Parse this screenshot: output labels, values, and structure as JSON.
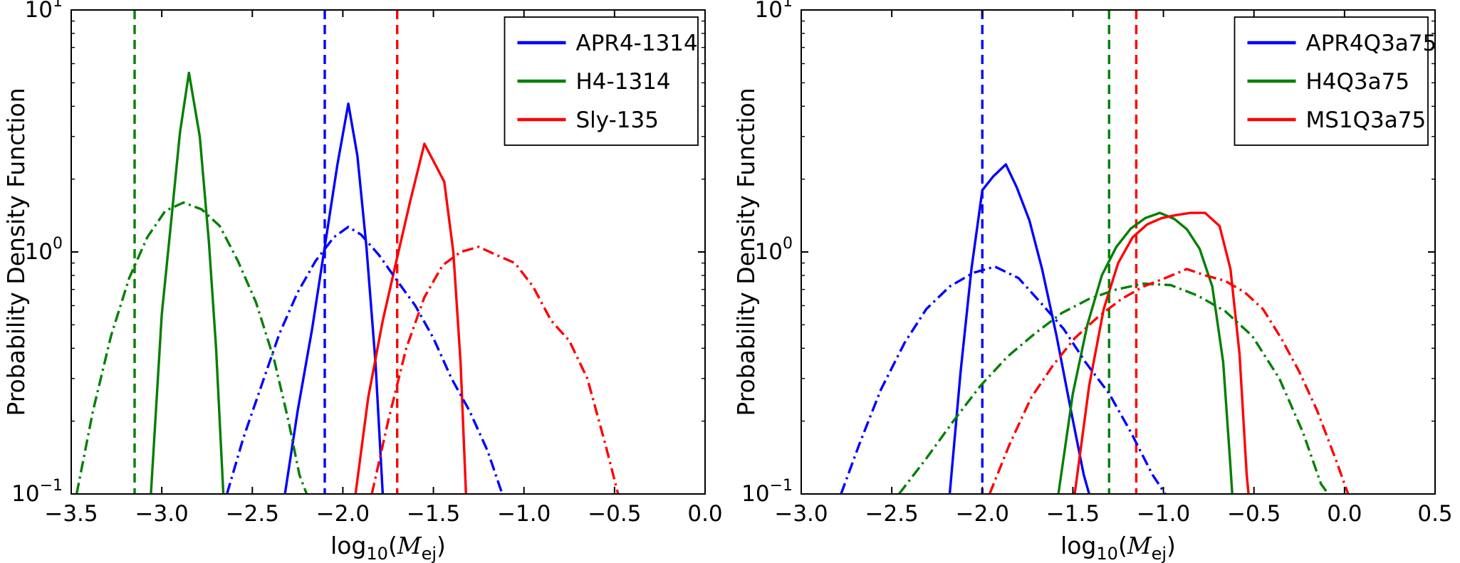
{
  "figure": {
    "background": "#ffffff",
    "description": "Two probability density function plots of ejecta mass (log10 Mej), left panel NS-NS models, right panel NS-BH models"
  },
  "colors": {
    "blue": "#0000ff",
    "green": "#008000",
    "red": "#ff0000",
    "axis": "#000000"
  },
  "chart_data": [
    {
      "type": "line",
      "title": "",
      "xlabel": "log10(M_ej)",
      "xlabel_math": {
        "func": "log",
        "sub": "10",
        "open": "(",
        "var": "M",
        "varsub": "ej",
        "close": ")"
      },
      "ylabel": "Probability Density Function",
      "xlim": [
        -3.5,
        0.0
      ],
      "xticks": [
        -3.5,
        -3.0,
        -2.5,
        -2.0,
        -1.5,
        -1.0,
        -0.5,
        0.0
      ],
      "yscale": "log",
      "ylim": [
        0.1,
        10
      ],
      "ytick_exponents": [
        -1,
        0,
        1
      ],
      "grid": false,
      "legend": {
        "position": "upper right",
        "entries": [
          {
            "label": "APR4-1314",
            "color": "#0000ff"
          },
          {
            "label": "H4-1314",
            "color": "#008000"
          },
          {
            "label": "Sly-135",
            "color": "#ff0000"
          }
        ]
      },
      "vlines": [
        {
          "x": -3.15,
          "color": "#008000",
          "style": "dashed"
        },
        {
          "x": -2.1,
          "color": "#0000ff",
          "style": "dashed"
        },
        {
          "x": -1.7,
          "color": "#ff0000",
          "style": "dashed"
        }
      ],
      "series": [
        {
          "name": "H4-1314-solid",
          "color": "#008000",
          "linestyle": "solid",
          "points": [
            [
              -3.06,
              0.1
            ],
            [
              -3.0,
              0.55
            ],
            [
              -2.95,
              1.3
            ],
            [
              -2.9,
              3.1
            ],
            [
              -2.85,
              5.5
            ],
            [
              -2.79,
              3.0
            ],
            [
              -2.74,
              1.1
            ],
            [
              -2.7,
              0.4
            ],
            [
              -2.66,
              0.1
            ]
          ]
        },
        {
          "name": "APR4-1314-solid",
          "color": "#0000ff",
          "linestyle": "solid",
          "points": [
            [
              -2.32,
              0.1
            ],
            [
              -2.25,
              0.22
            ],
            [
              -2.17,
              0.48
            ],
            [
              -2.1,
              1.05
            ],
            [
              -2.03,
              2.3
            ],
            [
              -1.97,
              4.1
            ],
            [
              -1.92,
              2.5
            ],
            [
              -1.87,
              1.05
            ],
            [
              -1.82,
              0.35
            ],
            [
              -1.78,
              0.1
            ]
          ]
        },
        {
          "name": "Sly-135-solid",
          "color": "#ff0000",
          "linestyle": "solid",
          "points": [
            [
              -1.93,
              0.1
            ],
            [
              -1.86,
              0.25
            ],
            [
              -1.78,
              0.52
            ],
            [
              -1.7,
              0.95
            ],
            [
              -1.63,
              1.6
            ],
            [
              -1.55,
              2.8
            ],
            [
              -1.49,
              2.3
            ],
            [
              -1.44,
              1.95
            ],
            [
              -1.39,
              1.0
            ],
            [
              -1.35,
              0.35
            ],
            [
              -1.32,
              0.1
            ]
          ]
        },
        {
          "name": "H4-1314-dashdot",
          "color": "#008000",
          "linestyle": "dashdot",
          "points": [
            [
              -3.47,
              0.1
            ],
            [
              -3.38,
              0.22
            ],
            [
              -3.28,
              0.45
            ],
            [
              -3.18,
              0.78
            ],
            [
              -3.08,
              1.15
            ],
            [
              -2.98,
              1.48
            ],
            [
              -2.88,
              1.6
            ],
            [
              -2.78,
              1.5
            ],
            [
              -2.68,
              1.28
            ],
            [
              -2.58,
              0.92
            ],
            [
              -2.48,
              0.62
            ],
            [
              -2.38,
              0.36
            ],
            [
              -2.3,
              0.2
            ],
            [
              -2.24,
              0.12
            ],
            [
              -2.2,
              0.1
            ]
          ]
        },
        {
          "name": "APR4-1314-dashdot",
          "color": "#0000ff",
          "linestyle": "dashdot",
          "points": [
            [
              -2.64,
              0.1
            ],
            [
              -2.55,
              0.17
            ],
            [
              -2.45,
              0.28
            ],
            [
              -2.35,
              0.46
            ],
            [
              -2.25,
              0.68
            ],
            [
              -2.15,
              0.92
            ],
            [
              -2.05,
              1.15
            ],
            [
              -1.97,
              1.27
            ],
            [
              -1.9,
              1.18
            ],
            [
              -1.8,
              0.97
            ],
            [
              -1.7,
              0.76
            ],
            [
              -1.6,
              0.6
            ],
            [
              -1.5,
              0.44
            ],
            [
              -1.4,
              0.3
            ],
            [
              -1.3,
              0.22
            ],
            [
              -1.2,
              0.15
            ],
            [
              -1.12,
              0.1
            ]
          ]
        },
        {
          "name": "Sly-135-dashdot",
          "color": "#ff0000",
          "linestyle": "dashdot",
          "points": [
            [
              -1.84,
              0.1
            ],
            [
              -1.75,
              0.2
            ],
            [
              -1.65,
              0.4
            ],
            [
              -1.55,
              0.65
            ],
            [
              -1.45,
              0.88
            ],
            [
              -1.35,
              1.0
            ],
            [
              -1.25,
              1.05
            ],
            [
              -1.15,
              0.97
            ],
            [
              -1.05,
              0.9
            ],
            [
              -0.95,
              0.72
            ],
            [
              -0.85,
              0.52
            ],
            [
              -0.75,
              0.43
            ],
            [
              -0.65,
              0.3
            ],
            [
              -0.55,
              0.16
            ],
            [
              -0.48,
              0.1
            ]
          ]
        }
      ]
    },
    {
      "type": "line",
      "title": "",
      "xlabel": "log10(M_ej)",
      "xlabel_math": {
        "func": "log",
        "sub": "10",
        "open": "(",
        "var": "M",
        "varsub": "ej",
        "close": ")"
      },
      "ylabel": "Probability Density Function",
      "xlim": [
        -3.0,
        0.5
      ],
      "xticks": [
        -3.0,
        -2.5,
        -2.0,
        -1.5,
        -1.0,
        -0.5,
        0.0,
        0.5
      ],
      "yscale": "log",
      "ylim": [
        0.1,
        10
      ],
      "ytick_exponents": [
        -1,
        0,
        1
      ],
      "grid": false,
      "legend": {
        "position": "upper right",
        "entries": [
          {
            "label": "APR4Q3a75",
            "color": "#0000ff"
          },
          {
            "label": "H4Q3a75",
            "color": "#008000"
          },
          {
            "label": "MS1Q3a75",
            "color": "#ff0000"
          }
        ]
      },
      "vlines": [
        {
          "x": -2.0,
          "color": "#0000ff",
          "style": "dashed"
        },
        {
          "x": -1.3,
          "color": "#008000",
          "style": "dashed"
        },
        {
          "x": -1.15,
          "color": "#ff0000",
          "style": "dashed"
        }
      ],
      "series": [
        {
          "name": "APR4Q3a75-solid",
          "color": "#0000ff",
          "linestyle": "solid",
          "points": [
            [
              -2.18,
              0.1
            ],
            [
              -2.12,
              0.32
            ],
            [
              -2.06,
              0.85
            ],
            [
              -2.0,
              1.8
            ],
            [
              -1.94,
              2.05
            ],
            [
              -1.87,
              2.3
            ],
            [
              -1.81,
              1.85
            ],
            [
              -1.74,
              1.35
            ],
            [
              -1.67,
              0.85
            ],
            [
              -1.59,
              0.45
            ],
            [
              -1.51,
              0.22
            ],
            [
              -1.44,
              0.12
            ],
            [
              -1.41,
              0.1
            ]
          ]
        },
        {
          "name": "H4Q3a75-solid",
          "color": "#008000",
          "linestyle": "solid",
          "points": [
            [
              -1.58,
              0.1
            ],
            [
              -1.5,
              0.26
            ],
            [
              -1.42,
              0.5
            ],
            [
              -1.34,
              0.8
            ],
            [
              -1.26,
              1.05
            ],
            [
              -1.18,
              1.25
            ],
            [
              -1.1,
              1.38
            ],
            [
              -1.02,
              1.45
            ],
            [
              -0.94,
              1.37
            ],
            [
              -0.87,
              1.24
            ],
            [
              -0.8,
              1.03
            ],
            [
              -0.73,
              0.72
            ],
            [
              -0.67,
              0.35
            ],
            [
              -0.63,
              0.13
            ],
            [
              -0.62,
              0.1
            ]
          ]
        },
        {
          "name": "MS1Q3a75-solid",
          "color": "#ff0000",
          "linestyle": "solid",
          "points": [
            [
              -1.49,
              0.1
            ],
            [
              -1.41,
              0.28
            ],
            [
              -1.33,
              0.58
            ],
            [
              -1.25,
              0.9
            ],
            [
              -1.17,
              1.15
            ],
            [
              -1.09,
              1.3
            ],
            [
              -1.01,
              1.38
            ],
            [
              -0.93,
              1.42
            ],
            [
              -0.85,
              1.45
            ],
            [
              -0.77,
              1.45
            ],
            [
              -0.69,
              1.28
            ],
            [
              -0.63,
              0.85
            ],
            [
              -0.58,
              0.38
            ],
            [
              -0.54,
              0.12
            ],
            [
              -0.53,
              0.1
            ]
          ]
        },
        {
          "name": "APR4Q3a75-dashdot",
          "color": "#0000ff",
          "linestyle": "dashdot",
          "points": [
            [
              -2.78,
              0.1
            ],
            [
              -2.68,
              0.16
            ],
            [
              -2.56,
              0.27
            ],
            [
              -2.43,
              0.42
            ],
            [
              -2.31,
              0.58
            ],
            [
              -2.18,
              0.72
            ],
            [
              -2.05,
              0.82
            ],
            [
              -1.93,
              0.87
            ],
            [
              -1.8,
              0.78
            ],
            [
              -1.68,
              0.62
            ],
            [
              -1.55,
              0.48
            ],
            [
              -1.43,
              0.35
            ],
            [
              -1.3,
              0.26
            ],
            [
              -1.18,
              0.18
            ],
            [
              -1.06,
              0.12
            ],
            [
              -0.99,
              0.1
            ]
          ]
        },
        {
          "name": "H4Q3a75-dashdot",
          "color": "#008000",
          "linestyle": "dashdot",
          "points": [
            [
              -2.46,
              0.1
            ],
            [
              -2.31,
              0.14
            ],
            [
              -2.16,
              0.2
            ],
            [
              -2.01,
              0.28
            ],
            [
              -1.86,
              0.37
            ],
            [
              -1.71,
              0.46
            ],
            [
              -1.56,
              0.56
            ],
            [
              -1.41,
              0.64
            ],
            [
              -1.26,
              0.7
            ],
            [
              -1.11,
              0.74
            ],
            [
              -0.96,
              0.73
            ],
            [
              -0.81,
              0.66
            ],
            [
              -0.66,
              0.57
            ],
            [
              -0.51,
              0.45
            ],
            [
              -0.36,
              0.3
            ],
            [
              -0.23,
              0.18
            ],
            [
              -0.13,
              0.11
            ],
            [
              -0.09,
              0.1
            ]
          ]
        },
        {
          "name": "MS1Q3a75-dashdot",
          "color": "#ff0000",
          "linestyle": "dashdot",
          "points": [
            [
              -1.96,
              0.1
            ],
            [
              -1.85,
              0.16
            ],
            [
              -1.73,
              0.25
            ],
            [
              -1.61,
              0.34
            ],
            [
              -1.49,
              0.44
            ],
            [
              -1.36,
              0.54
            ],
            [
              -1.23,
              0.64
            ],
            [
              -1.11,
              0.72
            ],
            [
              -0.99,
              0.78
            ],
            [
              -0.87,
              0.85
            ],
            [
              -0.77,
              0.8
            ],
            [
              -0.66,
              0.76
            ],
            [
              -0.55,
              0.68
            ],
            [
              -0.45,
              0.58
            ],
            [
              -0.35,
              0.44
            ],
            [
              -0.25,
              0.32
            ],
            [
              -0.15,
              0.22
            ],
            [
              -0.05,
              0.14
            ],
            [
              0.02,
              0.1
            ]
          ]
        }
      ]
    }
  ]
}
